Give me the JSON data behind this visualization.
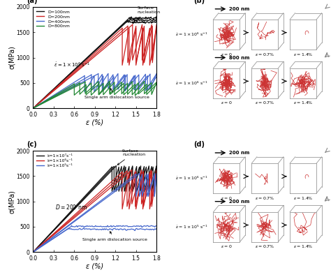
{
  "panel_a": {
    "xlabel": "ε (%)",
    "ylabel": "σ(MPa)",
    "xlim": [
      0.0,
      1.8
    ],
    "ylim": [
      0,
      2000
    ],
    "xticks": [
      0.0,
      0.3,
      0.6,
      0.9,
      1.2,
      1.5,
      1.8
    ],
    "yticks": [
      0,
      500,
      1000,
      1500,
      2000
    ],
    "legend": [
      "D=100nm",
      "D=200nm",
      "D=400nm",
      "D=800nm"
    ],
    "colors": [
      "#111111",
      "#cc2222",
      "#4466cc",
      "#228833"
    ]
  },
  "panel_c": {
    "xlabel": "ε (%)",
    "ylabel": "σ(MPa)",
    "xlim": [
      0.0,
      1.8
    ],
    "ylim": [
      0,
      2000
    ],
    "xticks": [
      0.0,
      0.3,
      0.6,
      0.9,
      1.2,
      1.5,
      1.8
    ],
    "yticks": [
      0,
      500,
      1000,
      1500,
      2000
    ],
    "legend": [
      "ε̇=1×10⁷s⁻¹",
      "ε̇=1×10⁶s⁻¹",
      "ε̇=1×10⁵s⁻¹"
    ],
    "colors": [
      "#111111",
      "#cc2222",
      "#4466cc"
    ]
  },
  "disloc_color": "#cc3333",
  "box_edge_color": "#999999",
  "background": "#ffffff"
}
